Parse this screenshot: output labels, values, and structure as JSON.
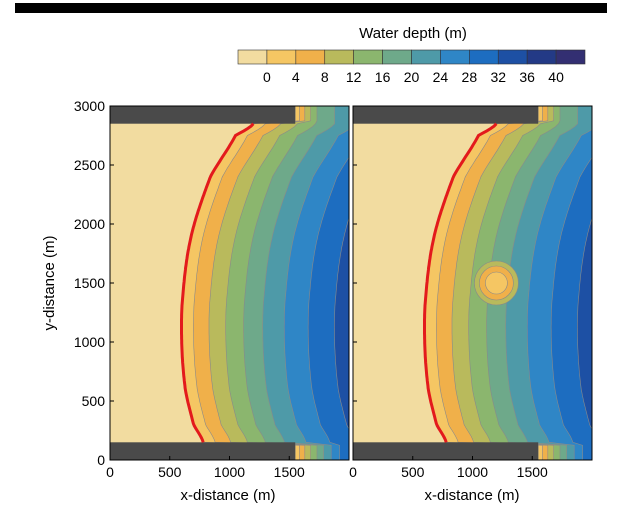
{
  "chart_data": {
    "type": "heatmap",
    "colorbar": {
      "title": "Water depth (m)",
      "levels": [
        -4,
        0,
        4,
        8,
        12,
        16,
        20,
        24,
        28,
        32,
        36,
        40
      ],
      "tick_labels": [
        "0",
        "4",
        "8",
        "12",
        "16",
        "20",
        "24",
        "28",
        "32",
        "36",
        "40"
      ],
      "colors": [
        "#f2dca0",
        "#f5c663",
        "#f0b04a",
        "#b9ba5c",
        "#8bb66e",
        "#6ea98a",
        "#4e9aa8",
        "#2f86c6",
        "#1d6dc0",
        "#1d50a4",
        "#233a86",
        "#332f72"
      ]
    },
    "xlabel": "x-distance (m)",
    "ylabel": "y-distance (m)",
    "xlim": [
      0,
      2000
    ],
    "ylim": [
      0,
      3000
    ],
    "x_ticks": [
      0,
      500,
      1000,
      1500
    ],
    "y_ticks": [
      0,
      500,
      1000,
      1500,
      2000,
      2500,
      3000
    ],
    "x_tick_labels": [
      "0",
      "500",
      "1000",
      "1500"
    ],
    "y_tick_labels": [
      "0",
      "500",
      "1000",
      "1500",
      "2000",
      "2500",
      "3000"
    ],
    "structures": {
      "color": "#4a4a4a",
      "y_ranges": [
        [
          0,
          150
        ],
        [
          2850,
          3000
        ]
      ],
      "x_end": 1550
    },
    "panels": [
      {
        "name": "left",
        "shoreline": {
          "color": "#e31a1c",
          "points": [
            [
              780,
              150
            ],
            [
              700,
              300
            ],
            [
              630,
              600
            ],
            [
              600,
              1000
            ],
            [
              610,
              1400
            ],
            [
              680,
              1900
            ],
            [
              840,
              2400
            ],
            [
              1050,
              2750
            ],
            [
              1200,
              2850
            ]
          ]
        },
        "shoal": null
      },
      {
        "name": "right",
        "shoreline": {
          "color": "#e31a1c",
          "points": [
            [
              780,
              150
            ],
            [
              700,
              300
            ],
            [
              630,
              600
            ],
            [
              600,
              1000
            ],
            [
              610,
              1400
            ],
            [
              680,
              1900
            ],
            [
              840,
              2400
            ],
            [
              1050,
              2750
            ],
            [
              1200,
              2850
            ]
          ]
        },
        "shoal": {
          "center": [
            1200,
            1500
          ],
          "depth": 4
        }
      }
    ],
    "contour_offsets_m": [
      0,
      100,
      230,
      370,
      520,
      680,
      860,
      1060,
      1280,
      1520
    ]
  }
}
